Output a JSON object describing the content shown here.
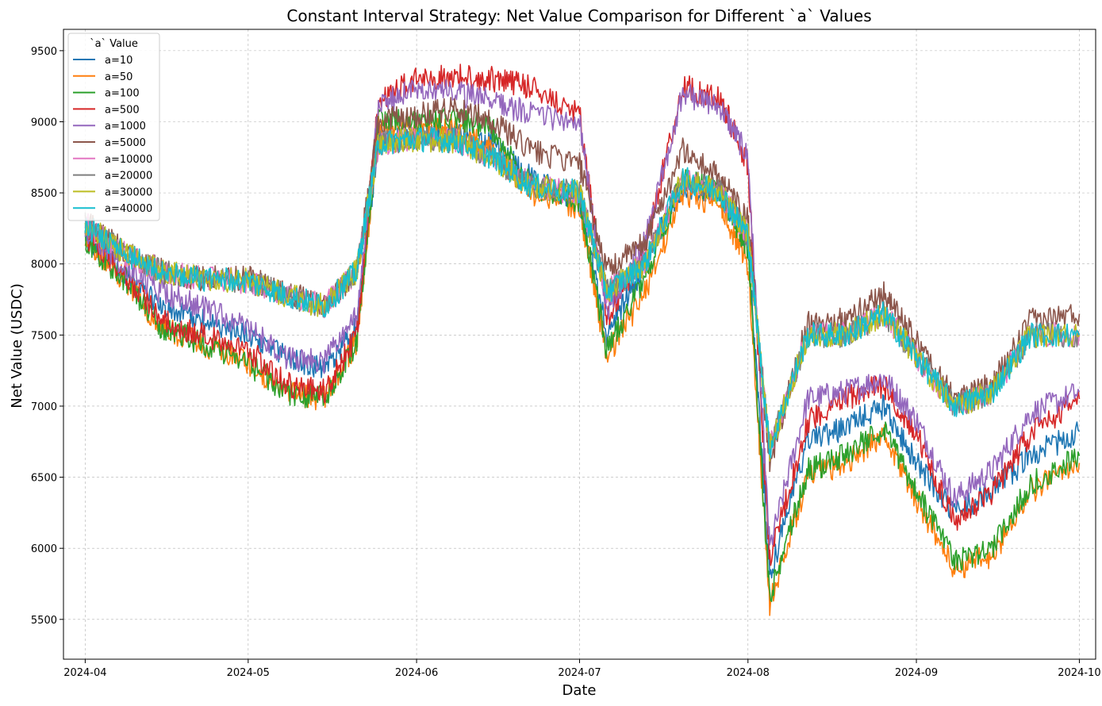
{
  "chart_data": {
    "type": "line",
    "title": "Constant Interval Strategy: Net Value Comparison for Different `a` Values",
    "xlabel": "Date",
    "ylabel": "Net Value (USDC)",
    "x_ticks": [
      "2024-04",
      "2024-05",
      "2024-06",
      "2024-07",
      "2024-08",
      "2024-09",
      "2024-10"
    ],
    "y_ticks": [
      5500,
      6000,
      6500,
      7000,
      7500,
      8000,
      8500,
      9000,
      9500
    ],
    "xlim": [
      "2024-03-28",
      "2024-10-04"
    ],
    "ylim": [
      5220,
      9650
    ],
    "grid": true,
    "legend": {
      "title": "`a` Value",
      "placement": "upper-left"
    },
    "x": [
      "2024-04-01",
      "2024-04-08",
      "2024-04-15",
      "2024-04-22",
      "2024-05-01",
      "2024-05-08",
      "2024-05-15",
      "2024-05-21",
      "2024-05-25",
      "2024-06-01",
      "2024-06-08",
      "2024-06-15",
      "2024-06-22",
      "2024-07-01",
      "2024-07-06",
      "2024-07-13",
      "2024-07-20",
      "2024-07-27",
      "2024-08-01",
      "2024-08-05",
      "2024-08-12",
      "2024-08-19",
      "2024-08-26",
      "2024-09-01",
      "2024-09-08",
      "2024-09-15",
      "2024-09-22",
      "2024-10-01"
    ],
    "series": [
      {
        "name": "a=10",
        "color": "#1f77b4",
        "values": [
          8200,
          7950,
          7700,
          7600,
          7500,
          7350,
          7250,
          7550,
          8880,
          8890,
          8900,
          8850,
          8600,
          8450,
          7500,
          8000,
          8550,
          8500,
          8150,
          5800,
          6750,
          6850,
          7000,
          6600,
          6250,
          6400,
          6650,
          6820
        ]
      },
      {
        "name": "a=50",
        "color": "#ff7f0e",
        "values": [
          8150,
          7900,
          7550,
          7450,
          7300,
          7100,
          7050,
          7450,
          8960,
          8960,
          8960,
          8800,
          8500,
          8400,
          7350,
          7800,
          8500,
          8400,
          8000,
          5600,
          6500,
          6600,
          6800,
          6350,
          5850,
          5950,
          6400,
          6600
        ]
      },
      {
        "name": "a=100",
        "color": "#2ca02c",
        "values": [
          8150,
          7900,
          7550,
          7450,
          7300,
          7100,
          7050,
          7450,
          9000,
          9000,
          9030,
          8950,
          8550,
          8450,
          7400,
          7900,
          8600,
          8500,
          8100,
          5650,
          6550,
          6650,
          6850,
          6400,
          5900,
          6000,
          6450,
          6650
        ]
      },
      {
        "name": "a=500",
        "color": "#d62728",
        "values": [
          8200,
          7950,
          7600,
          7500,
          7400,
          7150,
          7100,
          7500,
          9150,
          9300,
          9320,
          9300,
          9250,
          9050,
          7600,
          8100,
          9250,
          9150,
          8700,
          5900,
          6900,
          7050,
          7150,
          6800,
          6200,
          6400,
          6800,
          7050
        ]
      },
      {
        "name": "a=1000",
        "color": "#9467bd",
        "values": [
          8250,
          8000,
          7800,
          7700,
          7550,
          7350,
          7300,
          7650,
          9100,
          9250,
          9200,
          9150,
          9050,
          9000,
          7650,
          8150,
          9200,
          9100,
          8750,
          6000,
          7050,
          7100,
          7200,
          6900,
          6350,
          6550,
          6950,
          7100
        ]
      },
      {
        "name": "a=5000",
        "color": "#8c564b",
        "values": [
          8300,
          8100,
          7950,
          7900,
          7900,
          7800,
          7700,
          7950,
          9000,
          9050,
          9100,
          9000,
          8800,
          8700,
          7950,
          8150,
          8800,
          8600,
          8300,
          6600,
          7600,
          7600,
          7800,
          7450,
          7050,
          7150,
          7600,
          7650
        ]
      },
      {
        "name": "a=10000",
        "color": "#e377c2",
        "values": [
          8280,
          8080,
          7950,
          7900,
          7880,
          7780,
          7700,
          7950,
          8850,
          8880,
          8870,
          8750,
          8550,
          8500,
          7800,
          8000,
          8600,
          8500,
          8200,
          6700,
          7500,
          7500,
          7650,
          7350,
          7000,
          7100,
          7500,
          7500
        ]
      },
      {
        "name": "a=20000",
        "color": "#7f7f7f",
        "values": [
          8280,
          8080,
          7950,
          7900,
          7880,
          7780,
          7700,
          7950,
          8850,
          8880,
          8870,
          8750,
          8550,
          8500,
          7800,
          8000,
          8600,
          8500,
          8200,
          6700,
          7500,
          7500,
          7650,
          7350,
          7000,
          7100,
          7500,
          7500
        ]
      },
      {
        "name": "a=30000",
        "color": "#bcbd22",
        "values": [
          8280,
          8080,
          7950,
          7900,
          7880,
          7780,
          7700,
          7950,
          8850,
          8880,
          8870,
          8750,
          8550,
          8500,
          7800,
          8000,
          8600,
          8500,
          8200,
          6700,
          7500,
          7500,
          7650,
          7350,
          7000,
          7100,
          7500,
          7500
        ]
      },
      {
        "name": "a=40000",
        "color": "#17becf",
        "values": [
          8280,
          8080,
          7950,
          7900,
          7880,
          7780,
          7700,
          7950,
          8850,
          8880,
          8870,
          8750,
          8550,
          8500,
          7800,
          8000,
          8600,
          8500,
          8200,
          6700,
          7500,
          7500,
          7650,
          7350,
          7000,
          7100,
          7500,
          7500
        ]
      }
    ]
  }
}
